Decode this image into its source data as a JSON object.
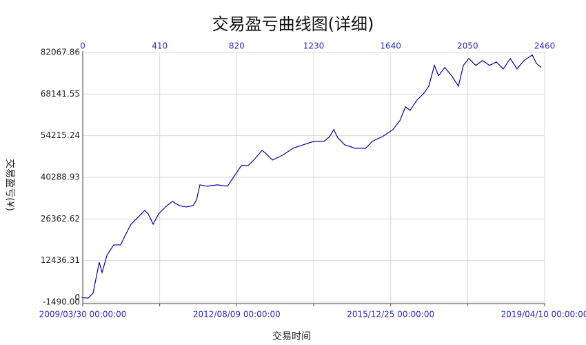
{
  "chart_data": {
    "type": "line",
    "title": "交易盈亏曲线图(详细)",
    "y_label": "交易盈亏(¥)",
    "x_label": "交易时间",
    "xlim": [
      0,
      2460
    ],
    "xticks": [
      0,
      410,
      820,
      1230,
      1640,
      2050,
      2460
    ],
    "date_ticks": [
      {
        "value": 0,
        "label": "2009/03/30 00:00:00"
      },
      {
        "value": 820,
        "label": "2012/08/09 00:00:00"
      },
      {
        "value": 1640,
        "label": "2015/12/25 00:00:00"
      },
      {
        "value": 2460,
        "label": "2019/04/10 00:00:00"
      }
    ],
    "ylim": [
      -1490,
      82067.86
    ],
    "yticks": [
      {
        "value": -1490,
        "label": "-1490.00"
      },
      {
        "value": 12436.31,
        "label": "12436.31"
      },
      {
        "value": 26362.62,
        "label": "26362.62"
      },
      {
        "value": 40288.93,
        "label": "40288.93"
      },
      {
        "value": 54215.24,
        "label": "54215.24"
      },
      {
        "value": 68141.55,
        "label": "68141.55"
      },
      {
        "value": 82067.86,
        "label": "82067.86"
      }
    ],
    "zero_tick": 0,
    "grid": true,
    "series": [
      {
        "color": "#0000a8",
        "x": [
          0,
          29,
          55,
          88,
          103,
          129,
          165,
          202,
          228,
          257,
          294,
          330,
          349,
          375,
          404,
          441,
          477,
          514,
          551,
          588,
          606,
          624,
          661,
          716,
          771,
          808,
          845,
          881,
          918,
          955,
          973,
          1010,
          1065,
          1120,
          1175,
          1230,
          1285,
          1315,
          1337,
          1359,
          1395,
          1450,
          1506,
          1542,
          1597,
          1652,
          1689,
          1719,
          1744,
          1781,
          1818,
          1843,
          1873,
          1895,
          1928,
          1965,
          2001,
          2027,
          2056,
          2093,
          2130,
          2166,
          2203,
          2240,
          2277,
          2313,
          2350,
          2394,
          2416,
          2442
        ],
        "values": [
          0,
          -100,
          1510,
          11900,
          8440,
          14210,
          17680,
          17680,
          21140,
          24610,
          26920,
          29230,
          28070,
          24610,
          28070,
          30380,
          32230,
          30840,
          30380,
          30840,
          32690,
          37770,
          37310,
          37770,
          37310,
          40780,
          44240,
          44240,
          46550,
          49320,
          48400,
          46090,
          47700,
          50010,
          51170,
          52320,
          52320,
          53940,
          56250,
          53480,
          51170,
          50010,
          50010,
          52320,
          53940,
          56250,
          59250,
          63870,
          62720,
          66180,
          68490,
          70800,
          77730,
          74260,
          77030,
          74260,
          70800,
          77730,
          80040,
          77730,
          79350,
          77730,
          78880,
          76570,
          80040,
          76570,
          79350,
          81200,
          78420,
          77030
        ]
      }
    ]
  }
}
